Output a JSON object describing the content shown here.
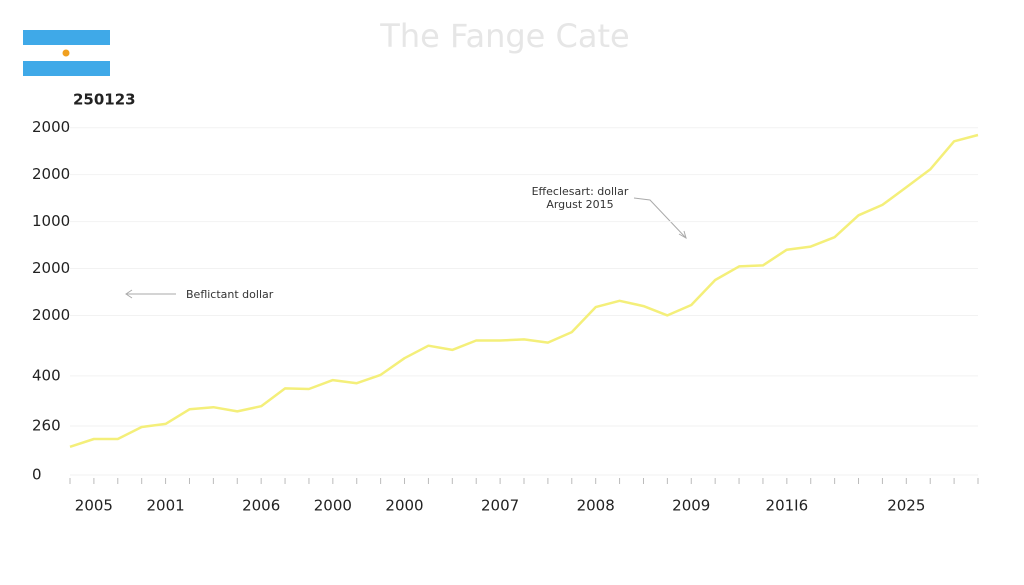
{
  "chart_data": {
    "type": "line",
    "title": "The Fange Cate",
    "subtitle": "250123",
    "annotations": [
      "Beflictant dollar",
      "Effeclesart: dollar",
      "Argust 2015"
    ],
    "categories": [
      null,
      "2005",
      null,
      null,
      "2001",
      null,
      null,
      null,
      "2006",
      null,
      null,
      "2000",
      null,
      null,
      "2000",
      null,
      null,
      null,
      "2007",
      null,
      null,
      null,
      "2008",
      null,
      null,
      null,
      "2009",
      null,
      null,
      null,
      "201I6",
      null,
      null,
      null,
      null,
      "2025",
      null,
      null,
      null
    ],
    "series": [
      {
        "name": "dollar",
        "color": "#f4ef7a",
        "values": [
          270,
          345,
          345,
          460,
          490,
          630,
          650,
          610,
          660,
          830,
          825,
          910,
          880,
          960,
          1120,
          1240,
          1200,
          1290,
          1290,
          1300,
          1270,
          1370,
          1610,
          1670,
          1620,
          1530,
          1630,
          1870,
          2000,
          2010,
          2160,
          2190,
          2280,
          2490,
          2590,
          2760,
          2930,
          3200,
          3260
        ]
      }
    ],
    "ylim": [
      0,
      3500
    ],
    "yticks": [
      0,
      {
        "value": 470,
        "label": "260"
      },
      {
        "value": 950,
        "label": "400"
      },
      {
        "value": 1530,
        "label": "2000"
      },
      {
        "value": 1980,
        "label": "2000"
      },
      {
        "value": 2430,
        "label": "1000"
      },
      {
        "value": 2880,
        "label": "2000"
      },
      {
        "value": 3330,
        "label": "2000"
      }
    ],
    "grid": true
  }
}
